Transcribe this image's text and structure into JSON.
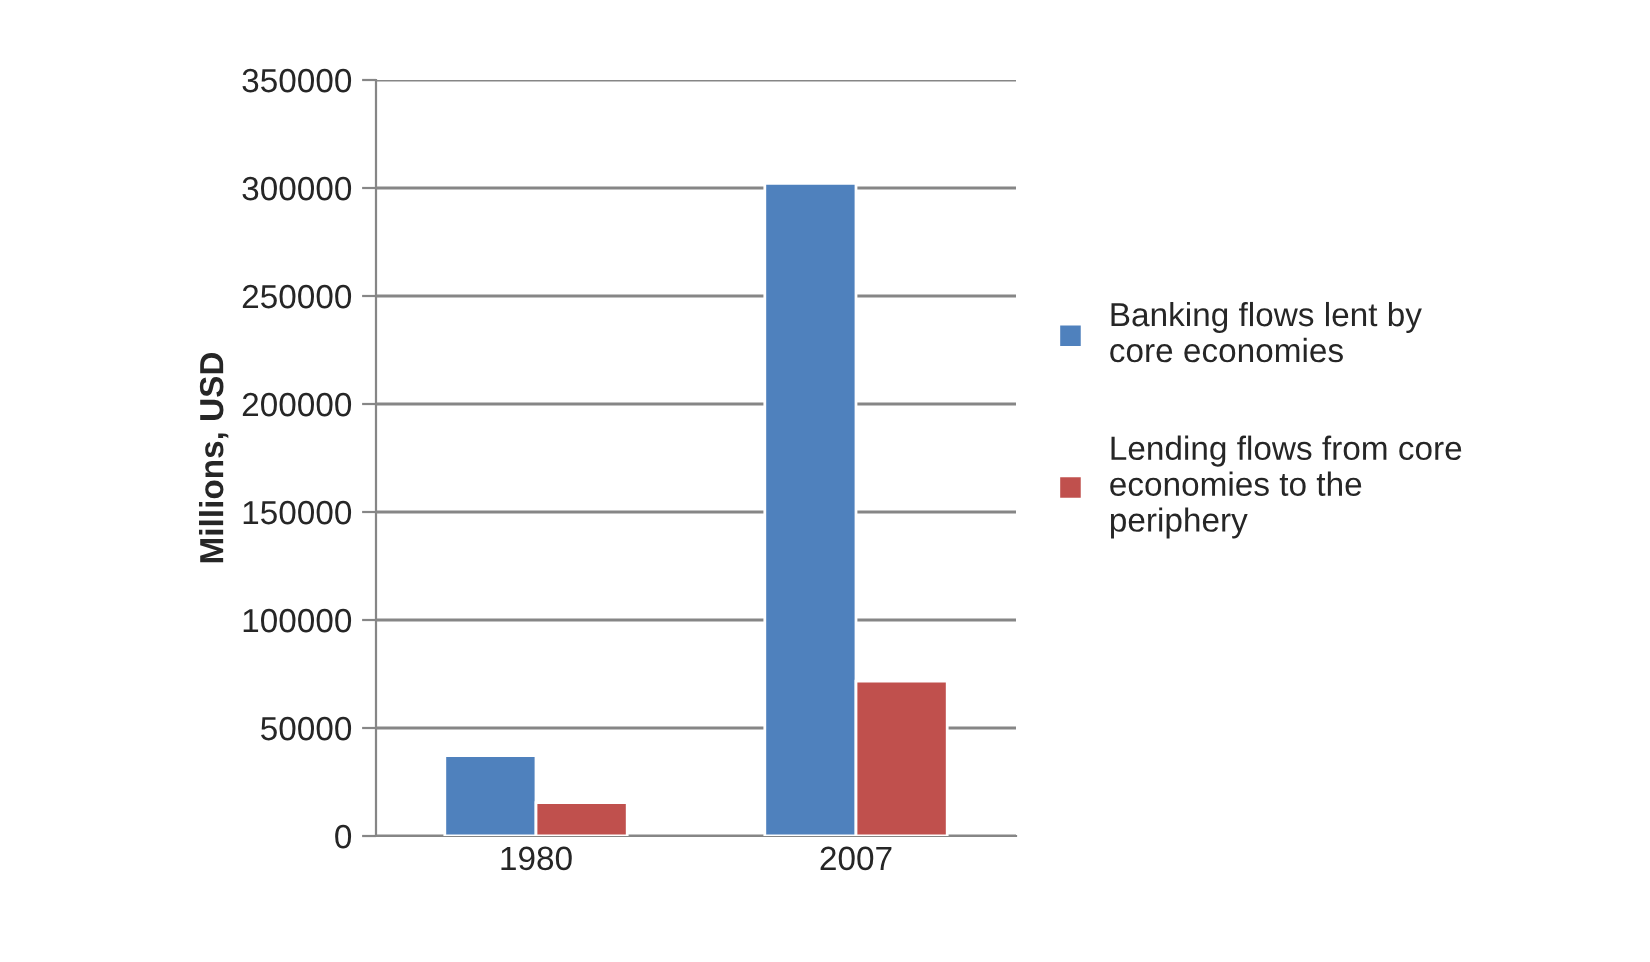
{
  "chart_data": {
    "type": "bar",
    "ylabel": "Millions, USD",
    "categories": [
      "1980",
      "2007"
    ],
    "series": [
      {
        "name": "Banking flows lent by core economies",
        "color": "#4f81bd",
        "values": [
          37200,
          302200
        ]
      },
      {
        "name": "Lending flows from core economies to the periphery",
        "color": "#c0504d",
        "values": [
          15400,
          71700
        ]
      }
    ],
    "ylim": [
      0,
      350000
    ],
    "yticks": [
      0,
      50000,
      100000,
      150000,
      200000,
      250000,
      300000,
      350000
    ],
    "grid": "y",
    "legend": "right"
  }
}
